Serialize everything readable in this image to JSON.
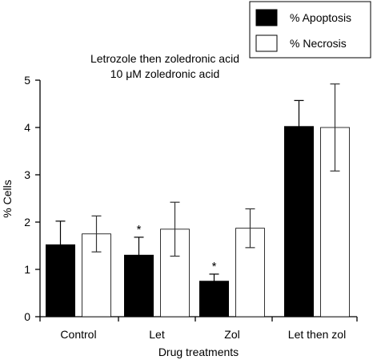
{
  "chart_data": {
    "type": "bar",
    "title": "Letrozole then zoledronic acid",
    "subtitle": "10 μM zoledronic acid",
    "xlabel": "Drug treatments",
    "ylabel": "% Cells",
    "ylim": [
      0,
      5
    ],
    "yticks": [
      "0",
      "1",
      "2",
      "3",
      "4",
      "5"
    ],
    "categories": [
      "Control",
      "Let",
      "Zol",
      "Let then zol"
    ],
    "legend_position": "top-right",
    "series": [
      {
        "name": "% Apoptosis",
        "color": "#000000",
        "values": [
          1.52,
          1.3,
          0.75,
          4.02
        ],
        "error": [
          0.5,
          0.38,
          0.15,
          0.55
        ]
      },
      {
        "name": "% Necrosis",
        "color": "#ffffff",
        "values": [
          1.75,
          1.85,
          1.87,
          4.0
        ],
        "error": [
          0.38,
          0.57,
          0.41,
          0.92
        ]
      }
    ],
    "annotations": [
      {
        "category_index": 1,
        "series_index": 0,
        "text": "*"
      },
      {
        "category_index": 2,
        "series_index": 0,
        "text": "*"
      }
    ]
  }
}
